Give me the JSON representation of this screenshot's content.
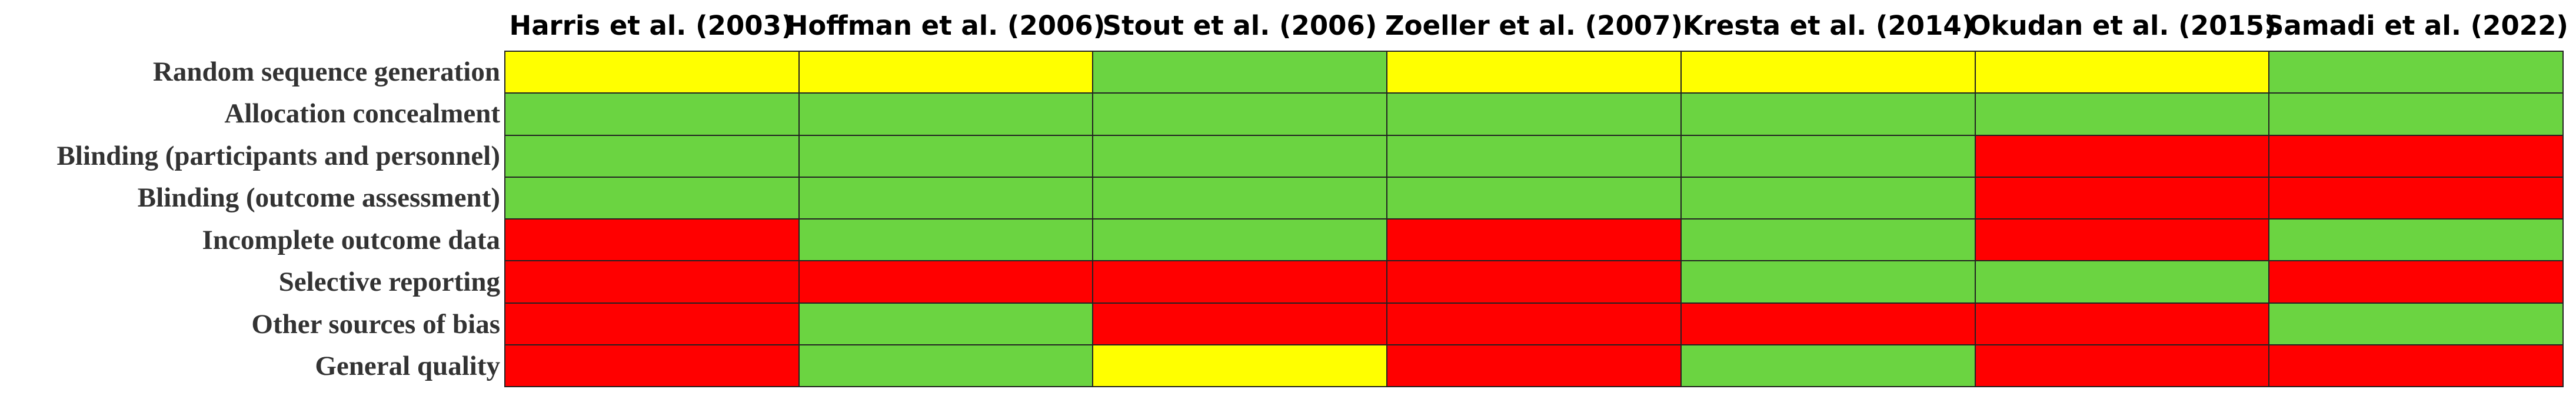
{
  "chart_data": {
    "type": "table",
    "columns": [
      "Harris et al. (2003)",
      "Hoffman et al. (2006)",
      "Stout et al. (2006)",
      "Zoeller et al. (2007)",
      "Kresta et al. (2014)",
      "Okudan et al. (2015)",
      "Samadi et al. (2022)"
    ],
    "rows": [
      "Random sequence generation",
      "Allocation concealment",
      "Blinding (participants and personnel)",
      "Blinding (outcome assessment)",
      "Incomplete outcome data",
      "Selective reporting",
      "Other sources of bias",
      "General quality"
    ],
    "colors": {
      "green": "#6bd441",
      "yellow": "#ffff00",
      "red": "#ff0000"
    },
    "cells": [
      [
        "yellow",
        "yellow",
        "green",
        "yellow",
        "yellow",
        "yellow",
        "green"
      ],
      [
        "green",
        "green",
        "green",
        "green",
        "green",
        "green",
        "green"
      ],
      [
        "green",
        "green",
        "green",
        "green",
        "green",
        "red",
        "red"
      ],
      [
        "green",
        "green",
        "green",
        "green",
        "green",
        "red",
        "red"
      ],
      [
        "red",
        "green",
        "green",
        "red",
        "green",
        "red",
        "green"
      ],
      [
        "red",
        "red",
        "red",
        "red",
        "green",
        "green",
        "red"
      ],
      [
        "red",
        "green",
        "red",
        "red",
        "red",
        "red",
        "green"
      ],
      [
        "red",
        "green",
        "yellow",
        "red",
        "green",
        "red",
        "red"
      ]
    ]
  }
}
